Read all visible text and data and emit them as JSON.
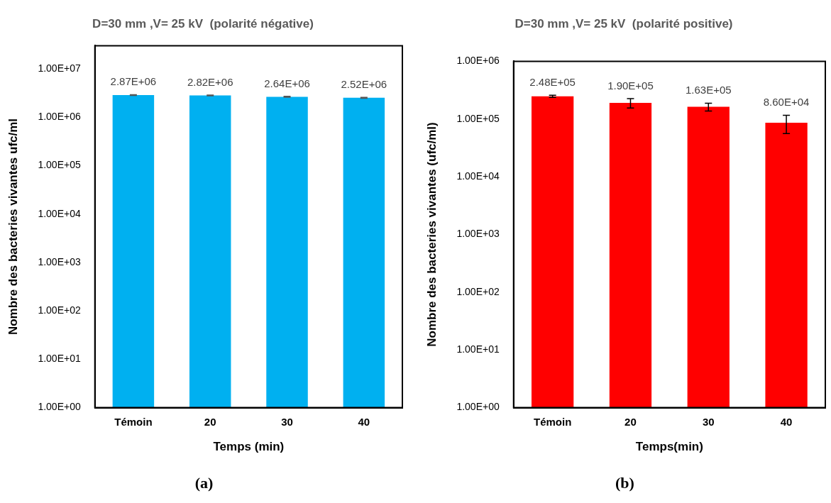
{
  "chart_data": [
    {
      "type": "bar",
      "title": "D=30 mm ,V= 25 kV  (polarité négative)",
      "xlabel": "Temps (min)",
      "ylabel": "Nombre des bacteries vivantes ufc/ml",
      "categories": [
        "Témoin",
        "20",
        "30",
        "40"
      ],
      "values": [
        2870000,
        2820000,
        2640000,
        2520000
      ],
      "errors": [
        50000,
        50000,
        50000,
        50000
      ],
      "color": "#00b0f0",
      "log": true,
      "ylim": [
        1,
        30000000
      ],
      "yticks": [
        {
          "value": 1,
          "label": "1.00E+00"
        },
        {
          "value": 10,
          "label": "1.00E+01"
        },
        {
          "value": 100,
          "label": "1.00E+02"
        },
        {
          "value": 1000,
          "label": "1.00E+03"
        },
        {
          "value": 10000,
          "label": "1.00E+04"
        },
        {
          "value": 100000,
          "label": "1.00E+05"
        },
        {
          "value": 1000000,
          "label": "1.00E+06"
        },
        {
          "value": 10000000,
          "label": "1.00E+07"
        }
      ],
      "value_labels": [
        "2.87E+06",
        "2.82E+06",
        "2.64E+06",
        "2.52E+06"
      ],
      "grid": false,
      "legend": false,
      "annotations": [
        "(a)"
      ]
    },
    {
      "type": "bar",
      "title": "D=30 mm ,V= 25 kV  (polarité positive)",
      "xlabel": "Temps(min)",
      "ylabel": "Nombre des bacteries vivantes (ufc/ml)",
      "categories": [
        "Témoin",
        "20",
        "30",
        "40"
      ],
      "values": [
        248000,
        190000,
        163000,
        86000
      ],
      "errors": [
        10000,
        35000,
        25000,
        30000
      ],
      "color": "#ff0000",
      "log": true,
      "ylim": [
        1,
        1000000
      ],
      "yticks": [
        {
          "value": 1,
          "label": "1.00E+00"
        },
        {
          "value": 10,
          "label": "1.00E+01"
        },
        {
          "value": 100,
          "label": "1.00E+02"
        },
        {
          "value": 1000,
          "label": "1.00E+03"
        },
        {
          "value": 10000,
          "label": "1.00E+04"
        },
        {
          "value": 100000,
          "label": "1.00E+05"
        },
        {
          "value": 1000000,
          "label": "1.00E+06"
        }
      ],
      "value_labels": [
        "2.48E+05",
        "1.90E+05",
        "1.63E+05",
        "8.60E+04"
      ],
      "grid": false,
      "legend": false,
      "annotations": [
        "(b)"
      ]
    }
  ]
}
